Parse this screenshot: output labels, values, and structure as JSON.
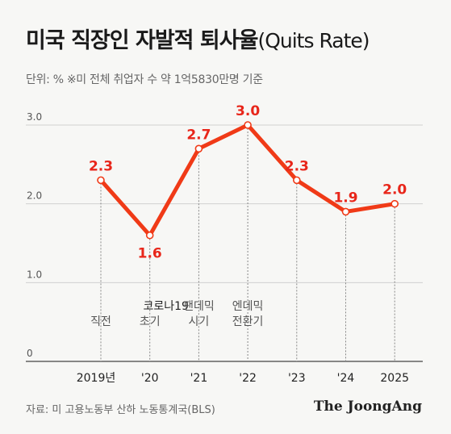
{
  "header": {
    "title": "미국 직장인 자발적 퇴사율",
    "title_en": "(Quits Rate)",
    "subtitle": "단위: %  ※미 전체 취업자 수 약 1억5830만명 기준"
  },
  "footer": {
    "source": "자료: 미 고용노동부 산하 노동통계국(BLS)",
    "logo": "The JoongAng"
  },
  "colors": {
    "line": "#f03a17",
    "label": "#e8261a",
    "grid": "#d0d0d0",
    "vline": "#888888"
  },
  "chart_data": {
    "type": "line",
    "x": [
      "2019년",
      "'20",
      "'21",
      "'22",
      "'23",
      "'24",
      "2025"
    ],
    "values": [
      2.3,
      1.6,
      2.7,
      3.0,
      2.3,
      1.9,
      2.0
    ],
    "value_labels": [
      "2.3",
      "1.6",
      "2.7",
      "3.0",
      "2.3",
      "1.9",
      "2.0"
    ],
    "y_ticks": [
      0,
      1.0,
      2.0,
      3.0
    ],
    "y_tick_labels": [
      "0",
      "1.0",
      "2.0",
      "3.0"
    ],
    "ylim": [
      0,
      3.2
    ],
    "annotations": [
      {
        "index": 0,
        "lines": [
          "직전"
        ]
      },
      {
        "index": 1,
        "lines": [
          "코로나19",
          "초기"
        ]
      },
      {
        "index": 2,
        "lines": [
          "팬데믹",
          "시기"
        ]
      },
      {
        "index": 3,
        "lines": [
          "엔데믹",
          "전환기"
        ]
      }
    ],
    "grid": true
  }
}
